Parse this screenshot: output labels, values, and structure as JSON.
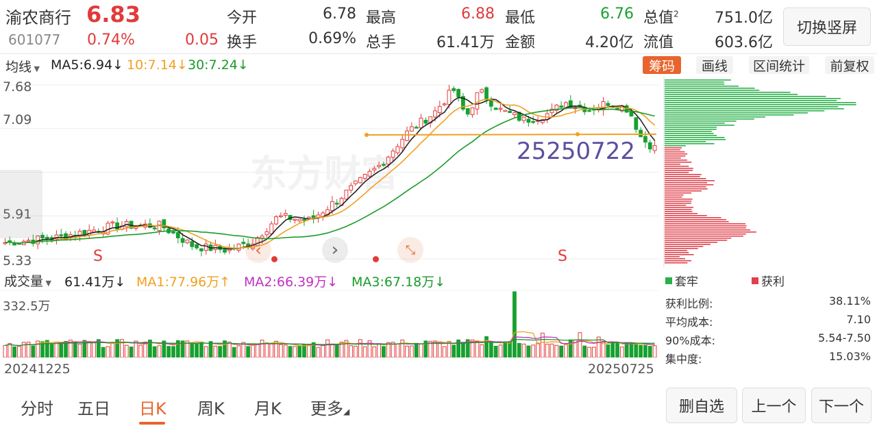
{
  "header": {
    "stock_name": "渝农商行",
    "price": "6.83",
    "code": "601077",
    "change_pct": "0.74%",
    "change_amt": "0.05",
    "open_label": "今开",
    "open_val": "6.78",
    "high_label": "最高",
    "high_val": "6.88",
    "low_label": "最低",
    "low_val": "6.76",
    "mktcap_label": "总值",
    "mktcap_sup": "2",
    "mktcap_val": "751.0亿",
    "turnover_label": "换手",
    "turnover_val": "0.69%",
    "volume_label": "总手",
    "volume_val": "61.41万",
    "amount_label": "金额",
    "amount_val": "4.20亿",
    "float_label": "流值",
    "float_val": "603.6亿",
    "switch_btn": "切换竖屏"
  },
  "toolbar": {
    "ma_selector": "均线",
    "ma5": "MA5:6.94↓",
    "ma10": "10:7.14↓",
    "ma30": "30:7.24↓",
    "chip_btn": "筹码",
    "draw_btn": "画线",
    "range_btn": "区间统计",
    "adjust_btn": "前复权"
  },
  "price_axis": {
    "p1": "7.68",
    "p2": "7.09",
    "p3": "5.91",
    "p4": "5.33"
  },
  "chart_overlay": {
    "annotation": "25250722",
    "watermark": "东方财富",
    "s_marker": "S"
  },
  "chart_data": {
    "type": "candlestick",
    "x_start": "20241225",
    "x_end": "20250725",
    "ylim": [
      5.33,
      7.68
    ],
    "support_line": 6.99,
    "volume_max_label": "332.5万"
  },
  "volume_bar": {
    "label": "成交量",
    "current": "61.41万↓",
    "ma1": "MA1:77.96万↑",
    "ma2": "MA2:66.39万↓",
    "ma3": "MA3:67.18万↓"
  },
  "chip_legend": {
    "trapped": "套牢",
    "profit": "获利"
  },
  "chip_stats": [
    {
      "label": "获利比例:",
      "value": "38.11%"
    },
    {
      "label": "平均成本:",
      "value": "7.10"
    },
    {
      "label": "90%成本:",
      "value": "5.54-7.50"
    },
    {
      "label": "集中度:",
      "value": "15.03%"
    }
  ],
  "tabs": [
    "分时",
    "五日",
    "日K",
    "周K",
    "月K",
    "更多"
  ],
  "actions": {
    "remove": "删自选",
    "prev": "上一个",
    "next": "下一个"
  },
  "colors": {
    "up": "#e23a3a",
    "down": "#17a12f",
    "ma5": "#222222",
    "ma10": "#f0a020",
    "ma30": "#1a9a2a",
    "accent": "#e8642c",
    "annotation": "#5b4fa0"
  }
}
